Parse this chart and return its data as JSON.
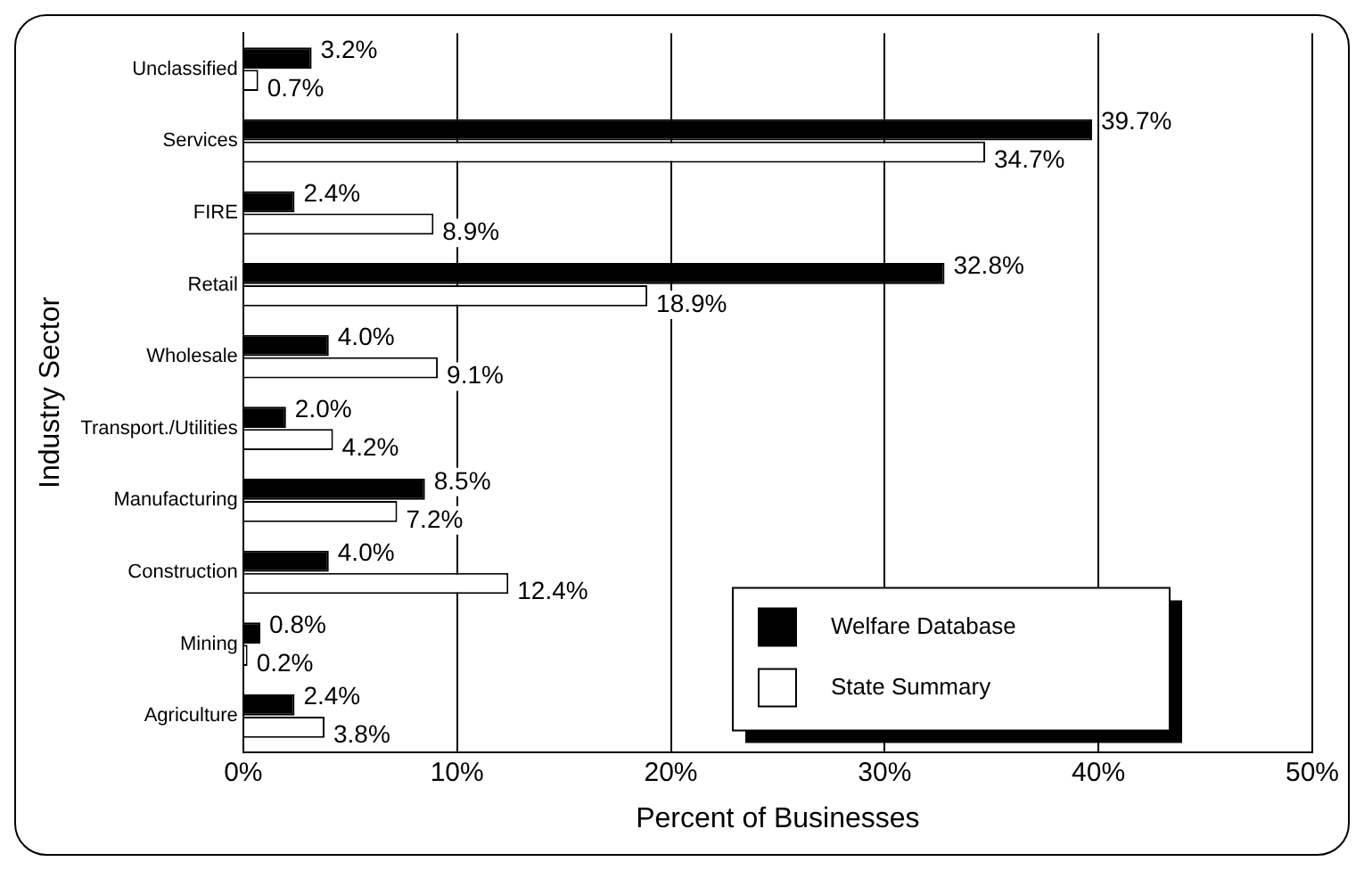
{
  "chart_data": {
    "type": "bar",
    "orientation": "horizontal",
    "ylabel": "Industry Sector",
    "xlabel": "Percent of Businesses",
    "categories": [
      "Unclassified",
      "Services",
      "FIRE",
      "Retail",
      "Wholesale",
      "Transport./Utilities",
      "Manufacturing",
      "Construction",
      "Mining",
      "Agriculture"
    ],
    "series": [
      {
        "name": "Welfare Database",
        "color": "#000000",
        "values": [
          3.2,
          39.7,
          2.4,
          32.8,
          4.0,
          2.0,
          8.5,
          4.0,
          0.8,
          2.4
        ],
        "value_labels": [
          "3.2%",
          "39.7%",
          "2.4%",
          "32.8%",
          "4.0%",
          "2.0%",
          "8.5%",
          "4.0%",
          "0.8%",
          "2.4%"
        ]
      },
      {
        "name": "State Summary",
        "color": "#ffffff",
        "values": [
          0.7,
          34.7,
          8.9,
          18.9,
          9.1,
          4.2,
          7.2,
          12.4,
          0.2,
          3.8
        ],
        "value_labels": [
          "0.7%",
          "34.7%",
          "8.9%",
          "18.9%",
          "9.1%",
          "4.2%",
          "7.2%",
          "12.4%",
          "0.2%",
          "3.8%"
        ]
      }
    ],
    "xlim": [
      0,
      50
    ],
    "xticks": [
      {
        "value": 0,
        "label": "0%"
      },
      {
        "value": 10,
        "label": "10%"
      },
      {
        "value": 20,
        "label": "20%"
      },
      {
        "value": 30,
        "label": "30%"
      },
      {
        "value": 40,
        "label": "40%"
      },
      {
        "value": 50,
        "label": "50%"
      }
    ],
    "grid": "x",
    "legend": "bottom right"
  }
}
